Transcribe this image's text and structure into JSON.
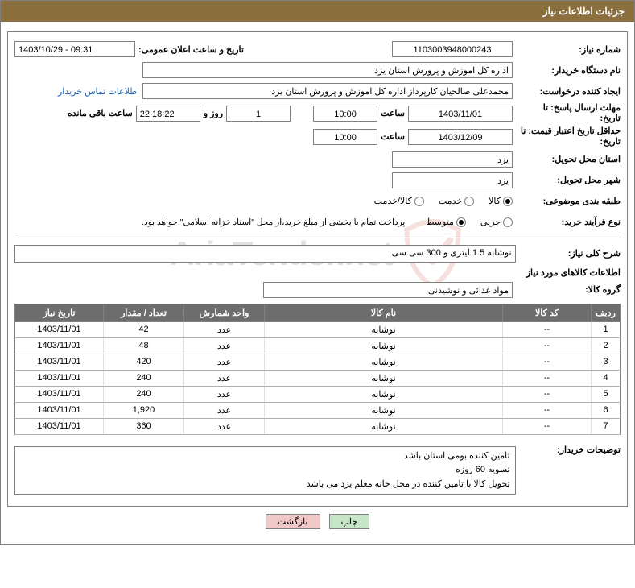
{
  "header": {
    "title": "جزئیات اطلاعات نیاز"
  },
  "watermark": {
    "text": "AriaTender.net",
    "shield_color": "#c0392b",
    "text_color": "#404040"
  },
  "labels": {
    "needNumber": "شماره نیاز:",
    "announceDateTime": "تاریخ و ساعت اعلان عمومی:",
    "buyerOrg": "نام دستگاه خریدار:",
    "requester": "ایجاد کننده درخواست:",
    "contactLink": "اطلاعات تماس خریدار",
    "deadline_line1": "مهلت ارسال پاسخ: تا",
    "deadline_line2": "تاریخ:",
    "hour": "ساعت",
    "dayAnd": "روز و",
    "remaining": "ساعت باقی مانده",
    "validity_line1": "حداقل تاریخ اعتبار قیمت: تا",
    "validity_line2": "تاریخ:",
    "deliveryProvince": "استان محل تحویل:",
    "deliveryCity": "شهر محل تحویل:",
    "category": "طبقه بندی موضوعی:",
    "cat_goods": "کالا",
    "cat_service": "خدمت",
    "cat_goods_service": "کالا/خدمت",
    "processType": "نوع فرآیند خرید:",
    "proc_small": "جزیی",
    "proc_medium": "متوسط",
    "paymentNote": "پرداخت تمام یا بخشی از مبلغ خرید،از محل \"اسناد خزانه اسلامی\" خواهد بود.",
    "generalDesc": "شرح کلی نیاز:",
    "itemsSection": "اطلاعات کالاهای مورد نیاز",
    "groupLabel": "گروه کالا:",
    "buyerNotes": "توضیحات خریدار:"
  },
  "values": {
    "needNumber": "1103003948000243",
    "announceDateTime": "1403/10/29 - 09:31",
    "buyerOrg": "اداره کل اموزش و پرورش استان یزد",
    "requester": "محمدعلی صالحیان کارپرداز اداره کل اموزش و پرورش استان یزد",
    "deadlineDate": "1403/11/01",
    "deadlineTime": "10:00",
    "remainingDays": "1",
    "remainingClock": "22:18:22",
    "validityDate": "1403/12/09",
    "validityTime": "10:00",
    "deliveryProvince": "یزد",
    "deliveryCity": "یزد",
    "generalDesc": "نوشابه 1.5 لیتری و 300 سی سی",
    "group": "مواد غذائی و نوشیدنی",
    "buyerNotesL1": "تامین کننده بومی استان باشد",
    "buyerNotesL2": "تسویه 60 روزه",
    "buyerNotesL3": "تحویل کالا با تامین کننده در محل خانه معلم یزد می باشد"
  },
  "category_selected": "goods",
  "process_selected": "medium",
  "tableHeaders": {
    "row": "ردیف",
    "code": "کد کالا",
    "name": "نام کالا",
    "unit": "واحد شمارش",
    "qty": "تعداد / مقدار",
    "needDate": "تاریخ نیاز"
  },
  "items": [
    {
      "row": "1",
      "code": "--",
      "name": "نوشابه",
      "unit": "عدد",
      "qty": "42",
      "date": "1403/11/01"
    },
    {
      "row": "2",
      "code": "--",
      "name": "نوشابه",
      "unit": "عدد",
      "qty": "48",
      "date": "1403/11/01"
    },
    {
      "row": "3",
      "code": "--",
      "name": "نوشابه",
      "unit": "عدد",
      "qty": "420",
      "date": "1403/11/01"
    },
    {
      "row": "4",
      "code": "--",
      "name": "نوشابه",
      "unit": "عدد",
      "qty": "240",
      "date": "1403/11/01"
    },
    {
      "row": "5",
      "code": "--",
      "name": "نوشابه",
      "unit": "عدد",
      "qty": "240",
      "date": "1403/11/01"
    },
    {
      "row": "6",
      "code": "--",
      "name": "نوشابه",
      "unit": "عدد",
      "qty": "1,920",
      "date": "1403/11/01"
    },
    {
      "row": "7",
      "code": "--",
      "name": "نوشابه",
      "unit": "عدد",
      "qty": "360",
      "date": "1403/11/01"
    }
  ],
  "buttons": {
    "print": "چاپ",
    "back": "بازگشت"
  },
  "colors": {
    "headerBg": "#8b6f3f",
    "headerFg": "#ffffff",
    "tableHeaderBg": "#6d6d6d",
    "tableHeaderFg": "#ffffff",
    "border": "#808080",
    "link": "#1a5fb4",
    "btnPrintBg": "#c7e6c7",
    "btnBackBg": "#f2c9c9"
  }
}
